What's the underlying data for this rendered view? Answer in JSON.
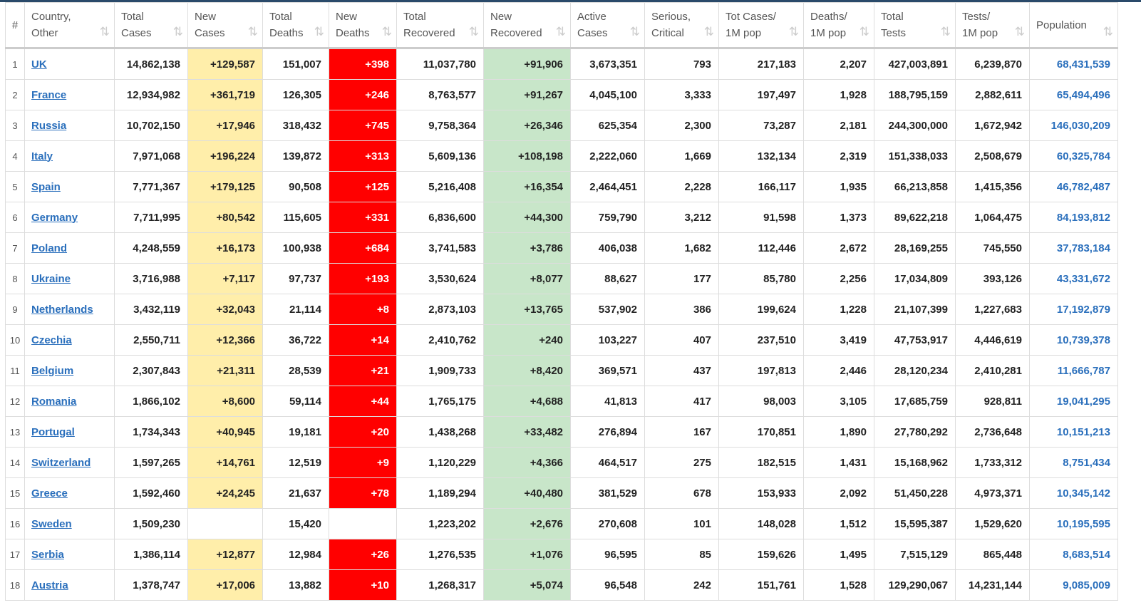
{
  "table": {
    "header": [
      [
        "#"
      ],
      [
        "Country,",
        "Other"
      ],
      [
        "Total",
        "Cases"
      ],
      [
        "New",
        "Cases"
      ],
      [
        "Total",
        "Deaths"
      ],
      [
        "New",
        "Deaths"
      ],
      [
        "Total",
        "Recovered"
      ],
      [
        "New",
        "Recovered"
      ],
      [
        "Active",
        "Cases"
      ],
      [
        "Serious,",
        "Critical"
      ],
      [
        "Tot Cases/",
        "1M pop"
      ],
      [
        "Deaths/",
        "1M pop"
      ],
      [
        "Total",
        "Tests"
      ],
      [
        "Tests/",
        "1M pop"
      ],
      [
        "Population"
      ]
    ],
    "rows": [
      [
        "1",
        "UK",
        "14,862,138",
        "+129,587",
        "151,007",
        "+398",
        "11,037,780",
        "+91,906",
        "3,673,351",
        "793",
        "217,183",
        "2,207",
        "427,003,891",
        "6,239,870",
        "68,431,539"
      ],
      [
        "2",
        "France",
        "12,934,982",
        "+361,719",
        "126,305",
        "+246",
        "8,763,577",
        "+91,267",
        "4,045,100",
        "3,333",
        "197,497",
        "1,928",
        "188,795,159",
        "2,882,611",
        "65,494,496"
      ],
      [
        "3",
        "Russia",
        "10,702,150",
        "+17,946",
        "318,432",
        "+745",
        "9,758,364",
        "+26,346",
        "625,354",
        "2,300",
        "73,287",
        "2,181",
        "244,300,000",
        "1,672,942",
        "146,030,209"
      ],
      [
        "4",
        "Italy",
        "7,971,068",
        "+196,224",
        "139,872",
        "+313",
        "5,609,136",
        "+108,198",
        "2,222,060",
        "1,669",
        "132,134",
        "2,319",
        "151,338,033",
        "2,508,679",
        "60,325,784"
      ],
      [
        "5",
        "Spain",
        "7,771,367",
        "+179,125",
        "90,508",
        "+125",
        "5,216,408",
        "+16,354",
        "2,464,451",
        "2,228",
        "166,117",
        "1,935",
        "66,213,858",
        "1,415,356",
        "46,782,487"
      ],
      [
        "6",
        "Germany",
        "7,711,995",
        "+80,542",
        "115,605",
        "+331",
        "6,836,600",
        "+44,300",
        "759,790",
        "3,212",
        "91,598",
        "1,373",
        "89,622,218",
        "1,064,475",
        "84,193,812"
      ],
      [
        "7",
        "Poland",
        "4,248,559",
        "+16,173",
        "100,938",
        "+684",
        "3,741,583",
        "+3,786",
        "406,038",
        "1,682",
        "112,446",
        "2,672",
        "28,169,255",
        "745,550",
        "37,783,184"
      ],
      [
        "8",
        "Ukraine",
        "3,716,988",
        "+7,117",
        "97,737",
        "+193",
        "3,530,624",
        "+8,077",
        "88,627",
        "177",
        "85,780",
        "2,256",
        "17,034,809",
        "393,126",
        "43,331,672"
      ],
      [
        "9",
        "Netherlands",
        "3,432,119",
        "+32,043",
        "21,114",
        "+8",
        "2,873,103",
        "+13,765",
        "537,902",
        "386",
        "199,624",
        "1,228",
        "21,107,399",
        "1,227,683",
        "17,192,879"
      ],
      [
        "10",
        "Czechia",
        "2,550,711",
        "+12,366",
        "36,722",
        "+14",
        "2,410,762",
        "+240",
        "103,227",
        "407",
        "237,510",
        "3,419",
        "47,753,917",
        "4,446,619",
        "10,739,378"
      ],
      [
        "11",
        "Belgium",
        "2,307,843",
        "+21,311",
        "28,539",
        "+21",
        "1,909,733",
        "+8,420",
        "369,571",
        "437",
        "197,813",
        "2,446",
        "28,120,234",
        "2,410,281",
        "11,666,787"
      ],
      [
        "12",
        "Romania",
        "1,866,102",
        "+8,600",
        "59,114",
        "+44",
        "1,765,175",
        "+4,688",
        "41,813",
        "417",
        "98,003",
        "3,105",
        "17,685,759",
        "928,811",
        "19,041,295"
      ],
      [
        "13",
        "Portugal",
        "1,734,343",
        "+40,945",
        "19,181",
        "+20",
        "1,438,268",
        "+33,482",
        "276,894",
        "167",
        "170,851",
        "1,890",
        "27,780,292",
        "2,736,648",
        "10,151,213"
      ],
      [
        "14",
        "Switzerland",
        "1,597,265",
        "+14,761",
        "12,519",
        "+9",
        "1,120,229",
        "+4,366",
        "464,517",
        "275",
        "182,515",
        "1,431",
        "15,168,962",
        "1,733,312",
        "8,751,434"
      ],
      [
        "15",
        "Greece",
        "1,592,460",
        "+24,245",
        "21,637",
        "+78",
        "1,189,294",
        "+40,480",
        "381,529",
        "678",
        "153,933",
        "2,092",
        "51,450,228",
        "4,973,371",
        "10,345,142"
      ],
      [
        "16",
        "Sweden",
        "1,509,230",
        null,
        "15,420",
        null,
        "1,223,202",
        "+2,676",
        "270,608",
        "101",
        "148,028",
        "1,512",
        "15,595,387",
        "1,529,620",
        "10,195,595"
      ],
      [
        "17",
        "Serbia",
        "1,386,114",
        "+12,877",
        "12,984",
        "+26",
        "1,276,535",
        "+1,076",
        "96,595",
        "85",
        "159,626",
        "1,495",
        "7,515,129",
        "865,448",
        "8,683,514"
      ],
      [
        "18",
        "Austria",
        "1,378,747",
        "+17,006",
        "13,882",
        "+10",
        "1,268,317",
        "+5,074",
        "96,548",
        "242",
        "151,761",
        "1,528",
        "129,290,067",
        "14,231,144",
        "9,085,009"
      ]
    ]
  }
}
